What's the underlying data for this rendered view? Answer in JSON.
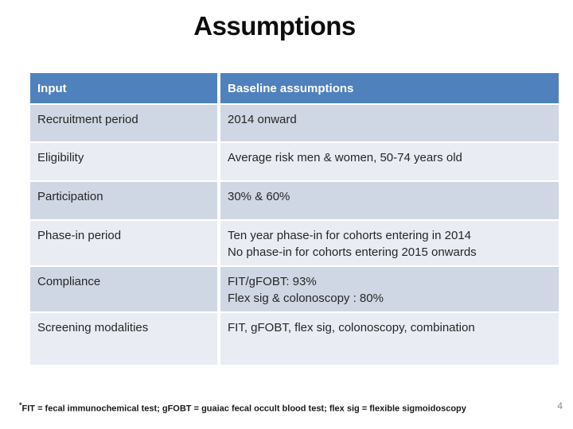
{
  "slide": {
    "title": "Assumptions",
    "page_number": "4",
    "footnote_marker": "*",
    "footnote_text": "FIT = fecal immunochemical test; gFOBT = guaiac fecal occult blood test; flex sig = flexible sigmoidoscopy"
  },
  "table": {
    "headers": [
      "Input",
      "Baseline assumptions"
    ],
    "rows": [
      {
        "input": "Recruitment period",
        "assumption": [
          "2014 onward"
        ]
      },
      {
        "input": "Eligibility",
        "assumption": [
          "Average risk men & women, 50-74 years old"
        ]
      },
      {
        "input": "Participation",
        "assumption": [
          "30% & 60%"
        ]
      },
      {
        "input": "Phase-in period",
        "assumption": [
          "Ten year phase-in for cohorts entering in 2014",
          "No phase-in for cohorts entering 2015 onwards"
        ]
      },
      {
        "input": "Compliance",
        "assumption": [
          "FIT/gFOBT: 93%",
          "Flex sig & colonoscopy : 80%"
        ]
      },
      {
        "input": "Screening modalities",
        "assumption": [
          "FIT, gFOBT, flex sig, colonoscopy, combination"
        ]
      }
    ]
  },
  "colors": {
    "header_background": "#4f81bd",
    "header_text": "#ffffff",
    "band_dark": "#d0d7e4",
    "band_light": "#e9edf3",
    "body_text": "#262626",
    "page_number_text": "#898989"
  }
}
